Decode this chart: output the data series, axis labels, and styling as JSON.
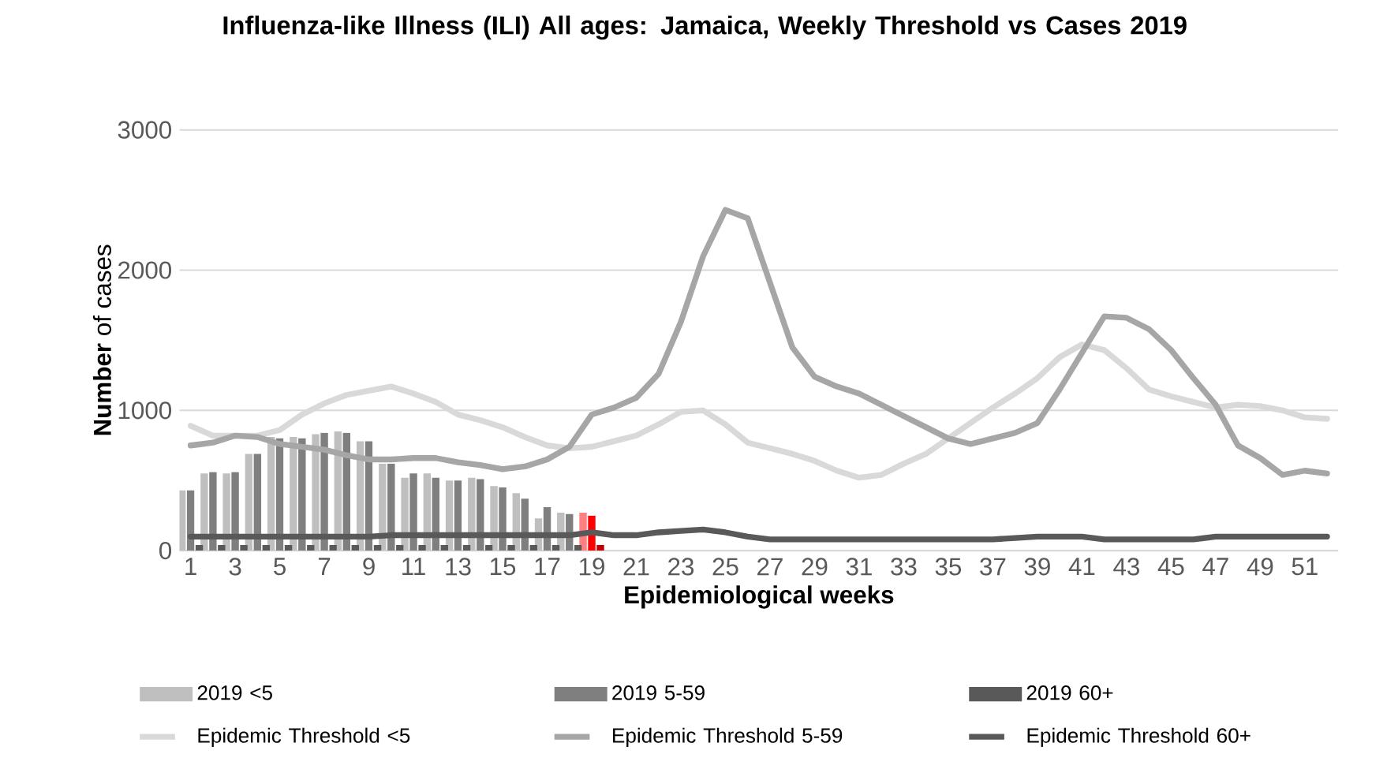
{
  "chart_data": {
    "type": "bar",
    "title": "Influenza-like Illness (ILI) All ages: Jamaica, Weekly Threshold vs Cases 2019",
    "xlabel": "Epidemiological weeks",
    "ylabel": "**Number** of cases",
    "categories": [
      "1",
      null,
      "3",
      null,
      "5",
      null,
      "7",
      null,
      "9",
      null,
      "11",
      null,
      "13",
      null,
      "15",
      null,
      "17",
      null,
      "19",
      null,
      "21",
      null,
      "23",
      null,
      "25",
      null,
      "27",
      null,
      "29",
      null,
      "31",
      null,
      "33",
      null,
      "35",
      null,
      "37",
      null,
      "39",
      null,
      "41",
      null,
      "43",
      null,
      "45",
      null,
      "47",
      null,
      "49",
      null,
      "51",
      null
    ],
    "ylim": [
      0,
      3000
    ],
    "yticks": [
      0,
      1000,
      2000,
      3000
    ],
    "grid": "y",
    "legend": "bottom",
    "series": [
      {
        "name": "2019 <5",
        "color": "#bfbfbf",
        "colors": [
          "#bfbfbf",
          "#bfbfbf",
          "#bfbfbf",
          "#bfbfbf",
          "#bfbfbf",
          "#bfbfbf",
          "#bfbfbf",
          "#bfbfbf",
          "#bfbfbf",
          "#bfbfbf",
          "#bfbfbf",
          "#bfbfbf",
          "#bfbfbf",
          "#bfbfbf",
          "#bfbfbf",
          "#bfbfbf",
          "#bfbfbf",
          "#bfbfbf",
          "#ff8080",
          "#bfbfbf",
          "#bfbfbf",
          "#bfbfbf",
          "#bfbfbf",
          "#bfbfbf",
          "#bfbfbf",
          "#bfbfbf",
          "#bfbfbf",
          "#bfbfbf",
          "#bfbfbf",
          "#bfbfbf",
          "#bfbfbf",
          "#bfbfbf",
          "#bfbfbf",
          "#bfbfbf",
          "#bfbfbf",
          "#bfbfbf",
          "#bfbfbf",
          "#bfbfbf",
          "#bfbfbf",
          "#bfbfbf",
          "#bfbfbf",
          "#bfbfbf",
          "#bfbfbf",
          "#bfbfbf",
          "#bfbfbf",
          "#bfbfbf",
          "#bfbfbf",
          "#bfbfbf",
          "#bfbfbf",
          "#bfbfbf",
          "#bfbfbf",
          "#bfbfbf"
        ],
        "values": [
          430,
          550,
          550,
          690,
          810,
          810,
          830,
          850,
          780,
          620,
          520,
          550,
          500,
          520,
          460,
          410,
          230,
          270,
          270,
          null,
          null,
          null,
          null,
          null,
          null,
          null,
          null,
          null,
          null,
          null,
          null,
          null,
          null,
          null,
          null,
          null,
          null,
          null,
          null,
          null,
          null,
          null,
          null,
          null,
          null,
          null,
          null,
          null,
          null,
          null,
          null,
          null
        ]
      },
      {
        "name": "2019 5-59",
        "color": "#7f7f7f",
        "colors": [
          "#7f7f7f",
          "#7f7f7f",
          "#7f7f7f",
          "#7f7f7f",
          "#7f7f7f",
          "#7f7f7f",
          "#7f7f7f",
          "#7f7f7f",
          "#7f7f7f",
          "#7f7f7f",
          "#7f7f7f",
          "#7f7f7f",
          "#7f7f7f",
          "#7f7f7f",
          "#7f7f7f",
          "#7f7f7f",
          "#7f7f7f",
          "#7f7f7f",
          "#ff0000",
          "#7f7f7f",
          "#7f7f7f",
          "#7f7f7f",
          "#7f7f7f",
          "#7f7f7f",
          "#7f7f7f",
          "#7f7f7f",
          "#7f7f7f",
          "#7f7f7f",
          "#7f7f7f",
          "#7f7f7f",
          "#7f7f7f",
          "#7f7f7f",
          "#7f7f7f",
          "#7f7f7f",
          "#7f7f7f",
          "#7f7f7f",
          "#7f7f7f",
          "#7f7f7f",
          "#7f7f7f",
          "#7f7f7f",
          "#7f7f7f",
          "#7f7f7f",
          "#7f7f7f",
          "#7f7f7f",
          "#7f7f7f",
          "#7f7f7f",
          "#7f7f7f",
          "#7f7f7f",
          "#7f7f7f",
          "#7f7f7f",
          "#7f7f7f",
          "#7f7f7f"
        ],
        "values": [
          430,
          560,
          560,
          690,
          800,
          800,
          840,
          840,
          780,
          620,
          550,
          520,
          500,
          510,
          450,
          370,
          310,
          260,
          250,
          null,
          null,
          null,
          null,
          null,
          null,
          null,
          null,
          null,
          null,
          null,
          null,
          null,
          null,
          null,
          null,
          null,
          null,
          null,
          null,
          null,
          null,
          null,
          null,
          null,
          null,
          null,
          null,
          null,
          null,
          null,
          null,
          null
        ]
      },
      {
        "name": "2019  60+",
        "color": "#595959",
        "colors": [
          "#595959",
          "#595959",
          "#595959",
          "#595959",
          "#595959",
          "#595959",
          "#595959",
          "#595959",
          "#595959",
          "#595959",
          "#595959",
          "#595959",
          "#595959",
          "#595959",
          "#595959",
          "#595959",
          "#595959",
          "#595959",
          "#c00000",
          "#595959",
          "#595959",
          "#595959",
          "#595959",
          "#595959",
          "#595959",
          "#595959",
          "#595959",
          "#595959",
          "#595959",
          "#595959",
          "#595959",
          "#595959",
          "#595959",
          "#595959",
          "#595959",
          "#595959",
          "#595959",
          "#595959",
          "#595959",
          "#595959",
          "#595959",
          "#595959",
          "#595959",
          "#595959",
          "#595959",
          "#595959",
          "#595959",
          "#595959",
          "#595959",
          "#595959",
          "#595959",
          "#595959"
        ],
        "values": [
          40,
          40,
          40,
          40,
          40,
          40,
          40,
          40,
          40,
          40,
          40,
          40,
          40,
          40,
          40,
          40,
          40,
          40,
          40,
          null,
          null,
          null,
          null,
          null,
          null,
          null,
          null,
          null,
          null,
          null,
          null,
          null,
          null,
          null,
          null,
          null,
          null,
          null,
          null,
          null,
          null,
          null,
          null,
          null,
          null,
          null,
          null,
          null,
          null,
          null,
          null,
          null
        ]
      },
      {
        "name": "Epidemic Threshold <5",
        "type": "line",
        "color": "#d9d9d9",
        "values": [
          890,
          820,
          820,
          820,
          860,
          970,
          1050,
          1110,
          1140,
          1170,
          1120,
          1060,
          970,
          930,
          880,
          810,
          750,
          730,
          740,
          780,
          820,
          900,
          990,
          1000,
          900,
          770,
          730,
          690,
          640,
          570,
          520,
          540,
          620,
          690,
          800,
          910,
          1020,
          1120,
          1230,
          1380,
          1470,
          1430,
          1300,
          1150,
          1100,
          1060,
          1020,
          1040,
          1030,
          1000,
          950,
          940
        ]
      },
      {
        "name": "Epidemic Threshold 5-59",
        "type": "line",
        "color": "#a6a6a6",
        "values": [
          750,
          770,
          820,
          810,
          760,
          740,
          720,
          680,
          650,
          650,
          660,
          660,
          630,
          610,
          580,
          600,
          650,
          740,
          970,
          1020,
          1090,
          1260,
          1630,
          2100,
          2430,
          2370,
          1910,
          1450,
          1240,
          1170,
          1120,
          1040,
          960,
          880,
          800,
          760,
          800,
          840,
          910,
          1150,
          1410,
          1670,
          1660,
          1580,
          1430,
          1230,
          1040,
          750,
          660,
          540,
          570,
          550
        ]
      },
      {
        "name": "Epidemic Threshold 60+",
        "type": "line",
        "color": "#595959",
        "values": [
          100,
          100,
          100,
          100,
          100,
          100,
          100,
          100,
          100,
          110,
          110,
          110,
          110,
          110,
          110,
          110,
          110,
          110,
          130,
          110,
          110,
          130,
          140,
          150,
          130,
          100,
          80,
          80,
          80,
          80,
          80,
          80,
          80,
          80,
          80,
          80,
          80,
          90,
          100,
          100,
          100,
          80,
          80,
          80,
          80,
          80,
          100,
          100,
          100,
          100,
          100,
          100
        ]
      }
    ]
  }
}
